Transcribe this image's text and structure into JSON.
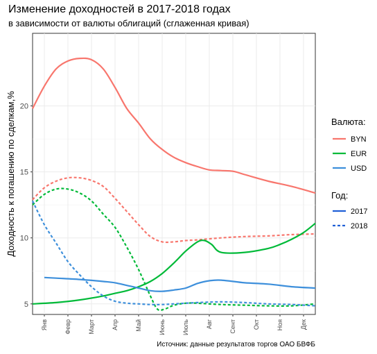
{
  "chart_data": {
    "type": "line",
    "title": "Изменение доходностей в 2017-2018 годах",
    "subtitle": "в зависимости от валюты облигаций (сглаженная кривая)",
    "xlabel": "",
    "ylabel": "Доходность к погашению по сделкам,%",
    "caption": "Источник: данные результатов торгов ОАО БВФБ",
    "categories": [
      "Янв",
      "Февр",
      "Март",
      "Апр",
      "Май",
      "Июнь",
      "Июль",
      "Авг",
      "Сент",
      "Окт",
      "Ноя",
      "Дек"
    ],
    "x_range": [
      1,
      13
    ],
    "ylim": [
      4.2,
      25.5
    ],
    "y_ticks": [
      5,
      10,
      15,
      20
    ],
    "grid": true,
    "legends": [
      {
        "title": "Валюта:",
        "items": [
          {
            "label": "BYN",
            "color": "#F8766D"
          },
          {
            "label": "EUR",
            "color": "#00BA38"
          },
          {
            "label": "USD",
            "color": "#3D8FDB"
          }
        ]
      },
      {
        "title": "Год:",
        "items": [
          {
            "label": "2017",
            "dash": "solid"
          },
          {
            "label": "2018",
            "dash": "dashed"
          }
        ]
      }
    ],
    "series": [
      {
        "currency": "BYN",
        "year": "2017",
        "color": "#F8766D",
        "dash": "solid",
        "x": [
          1,
          1.5,
          2,
          2.5,
          3,
          3.5,
          4,
          4.5,
          5,
          5.5,
          6,
          6.5,
          7,
          7.5,
          8,
          8.5,
          9,
          9.5,
          10,
          11,
          12,
          13
        ],
        "y": [
          19.8,
          21.5,
          22.8,
          23.4,
          23.6,
          23.5,
          22.8,
          21.4,
          19.8,
          18.7,
          17.5,
          16.7,
          16.1,
          15.7,
          15.4,
          15.15,
          15.1,
          15.05,
          14.8,
          14.3,
          13.9,
          13.4
        ]
      },
      {
        "currency": "BYN",
        "year": "2018",
        "color": "#F8766D",
        "dash": "dashed",
        "x": [
          1,
          1.5,
          2,
          2.5,
          3,
          3.5,
          4,
          4.5,
          5,
          5.5,
          6,
          6.5,
          7,
          7.5,
          8,
          9,
          10,
          11,
          12,
          13
        ],
        "y": [
          12.9,
          13.8,
          14.3,
          14.55,
          14.55,
          14.35,
          13.9,
          13.0,
          12.0,
          11.0,
          10.1,
          9.7,
          9.7,
          9.8,
          9.85,
          10.0,
          10.1,
          10.15,
          10.25,
          10.3
        ]
      },
      {
        "currency": "EUR",
        "year": "2017",
        "color": "#00BA38",
        "dash": "solid",
        "x": [
          1,
          2,
          3,
          4,
          4.5,
          5,
          5.5,
          6,
          6.5,
          7,
          7.5,
          8,
          8.3,
          8.6,
          9,
          10,
          11,
          11.5,
          12,
          12.5,
          13
        ],
        "y": [
          5.0,
          5.1,
          5.3,
          5.6,
          5.8,
          6.0,
          6.3,
          6.7,
          7.3,
          8.1,
          9.0,
          9.7,
          9.8,
          9.5,
          8.9,
          8.9,
          9.2,
          9.5,
          9.9,
          10.4,
          11.1
        ]
      },
      {
        "currency": "EUR",
        "year": "2018",
        "color": "#00BA38",
        "dash": "dashed",
        "x": [
          1,
          1.5,
          2,
          2.5,
          3,
          3.5,
          4,
          4.5,
          5,
          5.5,
          6,
          6.3,
          6.6,
          7,
          7.5,
          8,
          9,
          10,
          11,
          12,
          13
        ],
        "y": [
          12.5,
          13.3,
          13.7,
          13.7,
          13.4,
          12.8,
          11.8,
          10.8,
          9.3,
          7.6,
          5.6,
          4.6,
          4.6,
          4.9,
          5.05,
          5.05,
          4.95,
          4.9,
          4.85,
          4.85,
          5.0
        ]
      },
      {
        "currency": "USD",
        "year": "2017",
        "color": "#3D8FDB",
        "dash": "solid",
        "x": [
          1.5,
          2,
          3,
          4,
          4.5,
          5,
          5.5,
          6,
          6.5,
          7,
          7.5,
          8,
          8.5,
          9,
          10,
          11,
          12,
          13
        ],
        "y": [
          7.0,
          6.95,
          6.85,
          6.7,
          6.6,
          6.4,
          6.2,
          6.0,
          5.95,
          6.05,
          6.2,
          6.55,
          6.75,
          6.8,
          6.6,
          6.5,
          6.3,
          6.2
        ]
      },
      {
        "currency": "USD",
        "year": "2018",
        "color": "#3D8FDB",
        "dash": "dashed",
        "x": [
          1,
          1.5,
          2,
          2.5,
          3,
          3.5,
          4,
          4.5,
          5,
          5.5,
          6,
          6.5,
          7,
          8,
          9,
          10,
          11,
          12,
          13
        ],
        "y": [
          12.8,
          11.0,
          9.6,
          8.2,
          7.2,
          6.3,
          5.6,
          5.2,
          5.05,
          5.0,
          4.95,
          4.95,
          5.0,
          5.1,
          5.15,
          5.1,
          5.0,
          4.95,
          4.85
        ]
      }
    ]
  }
}
